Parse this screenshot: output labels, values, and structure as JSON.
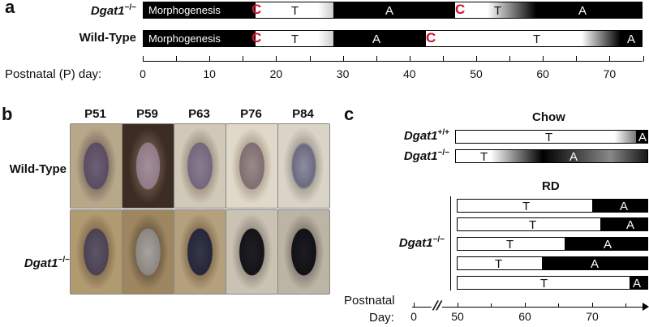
{
  "panel_a": {
    "letter": "a",
    "dgat1_label_gene": "Dgat1",
    "dgat1_label_sup": "−/−",
    "wildtype_label": "Wild-Type",
    "morphogenesis": "Morphogenesis",
    "catagen_mark": "C",
    "telogen": "T",
    "anagen": "A",
    "axis_label": "Postnatal (P) day:",
    "ticks": [
      "0",
      "10",
      "20",
      "30",
      "40",
      "50",
      "60",
      "70"
    ]
  },
  "panel_b": {
    "letter": "b",
    "columns": [
      "P51",
      "P59",
      "P63",
      "P76",
      "P84"
    ],
    "row_wildtype": "Wild-Type",
    "row_dgat1_gene": "Dgat1",
    "row_dgat1_sup": "−/−"
  },
  "panel_c": {
    "letter": "c",
    "chow_title": "Chow",
    "rd_title": "RD",
    "dgat1_wt_gene": "Dgat1",
    "dgat1_wt_sup": "+/+",
    "dgat1_ko_gene": "Dgat1",
    "dgat1_ko_sup": "−/−",
    "telogen": "T",
    "anagen": "A",
    "axis_label_1": "Postnatal",
    "axis_label_2": "Day:",
    "ticks": [
      "0",
      "50",
      "60",
      "70"
    ]
  }
}
